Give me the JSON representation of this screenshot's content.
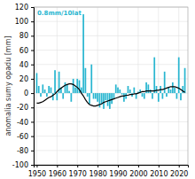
{
  "chart_data": {
    "type": "bar",
    "ylabel": "anomalia sumy opadu [mm]",
    "annotations": [
      {
        "text": "0.8mm/10lat",
        "color": "#29b6d0"
      }
    ],
    "x": [
      1950,
      1951,
      1952,
      1953,
      1954,
      1955,
      1956,
      1957,
      1958,
      1959,
      1960,
      1961,
      1962,
      1963,
      1964,
      1965,
      1966,
      1967,
      1968,
      1969,
      1970,
      1971,
      1972,
      1973,
      1974,
      1975,
      1976,
      1977,
      1978,
      1979,
      1980,
      1981,
      1982,
      1983,
      1984,
      1985,
      1986,
      1987,
      1988,
      1989,
      1990,
      1991,
      1992,
      1993,
      1994,
      1995,
      1996,
      1997,
      1998,
      1999,
      2000,
      2001,
      2002,
      2003,
      2004,
      2005,
      2006,
      2007,
      2008,
      2009,
      2010,
      2011,
      2012,
      2013,
      2014,
      2015,
      2016,
      2017,
      2018,
      2019,
      2020,
      2021,
      2022,
      2023
    ],
    "series": [
      {
        "type": "bar",
        "color": "#29b6d0",
        "values": [
          28,
          10,
          -5,
          12,
          5,
          -5,
          10,
          8,
          -10,
          32,
          -10,
          30,
          8,
          -8,
          15,
          12,
          3,
          -12,
          20,
          8,
          20,
          18,
          8,
          110,
          35,
          -5,
          -15,
          40,
          -8,
          -8,
          -12,
          -20,
          -15,
          -22,
          -10,
          -18,
          -22,
          -15,
          -8,
          12,
          8,
          5,
          -2,
          -12,
          -8,
          10,
          5,
          -5,
          8,
          -8,
          2,
          5,
          -5,
          -8,
          15,
          12,
          5,
          -8,
          50,
          10,
          -12,
          10,
          -8,
          30,
          -5,
          8,
          5,
          15,
          8,
          -8,
          50,
          -10,
          10,
          35
        ]
      },
      {
        "type": "line",
        "color": "#000000",
        "values": [
          -14,
          -14,
          -13,
          -12,
          -10,
          -8,
          -6,
          -5,
          -3,
          -1,
          2,
          5,
          7,
          9,
          11,
          12,
          13,
          13,
          12,
          10,
          8,
          5,
          0,
          -4,
          -9,
          -13,
          -16,
          -17,
          -18,
          -18,
          -17,
          -16,
          -15,
          -13,
          -12,
          -11,
          -10,
          -9,
          -8,
          -7,
          -6,
          -5,
          -4,
          -4,
          -3,
          -3,
          -2,
          -2,
          -1,
          -1,
          0,
          1,
          2,
          2,
          3,
          3,
          3,
          3,
          3,
          4,
          4,
          5,
          5,
          6,
          7,
          8,
          9,
          9,
          9,
          8,
          7,
          5,
          3,
          1
        ]
      }
    ],
    "xlim": [
      1948.5,
      2024.5
    ],
    "xticks": [
      1950,
      1960,
      1970,
      1980,
      1990,
      2000,
      2010,
      2020
    ],
    "ylim": [
      -100,
      120
    ],
    "yticks": [
      -100,
      -80,
      -60,
      -40,
      -20,
      0,
      20,
      40,
      60,
      80,
      100,
      120
    ],
    "grid": true
  }
}
